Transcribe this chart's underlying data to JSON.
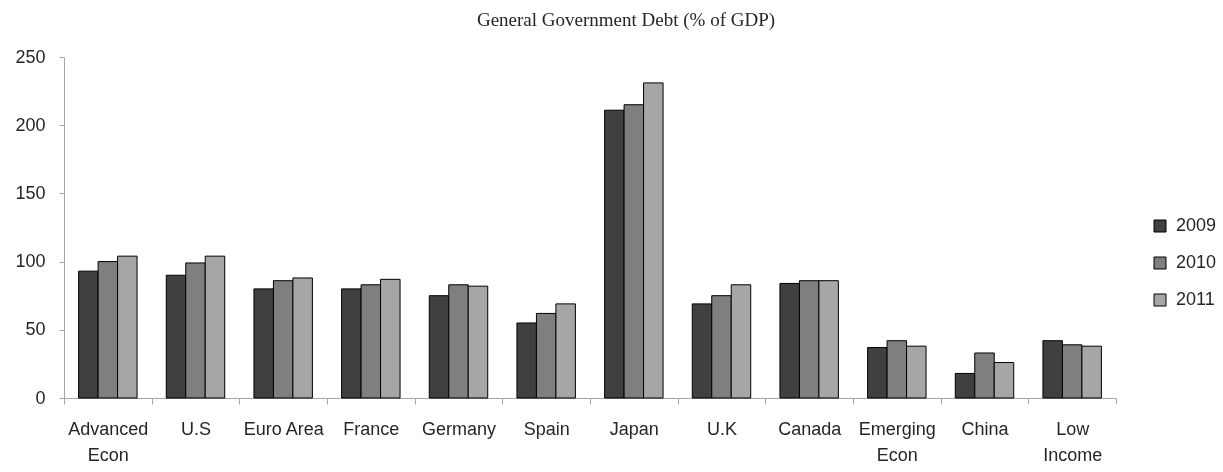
{
  "chart_data": {
    "type": "bar",
    "title": "General Government Debt (% of GDP)",
    "categories": [
      "Advanced Econ",
      "U.S",
      "Euro Area",
      "France",
      "Germany",
      "Spain",
      "Japan",
      "U.K",
      "Canada",
      "Emerging Econ",
      "China",
      "Low Income"
    ],
    "series": [
      {
        "name": "2009",
        "color": "#404040",
        "values": [
          93,
          90,
          80,
          80,
          75,
          55,
          211,
          69,
          84,
          37,
          18,
          42
        ]
      },
      {
        "name": "2010",
        "color": "#7f7f7f",
        "values": [
          100,
          99,
          86,
          83,
          83,
          62,
          215,
          75,
          86,
          42,
          33,
          39
        ]
      },
      {
        "name": "2011",
        "color": "#a6a6a6",
        "values": [
          104,
          104,
          88,
          87,
          82,
          69,
          231,
          83,
          86,
          38,
          26,
          38
        ]
      }
    ],
    "ylim": [
      0,
      250
    ],
    "yticks": [
      0,
      50,
      100,
      150,
      200,
      250
    ],
    "legend": "right"
  }
}
